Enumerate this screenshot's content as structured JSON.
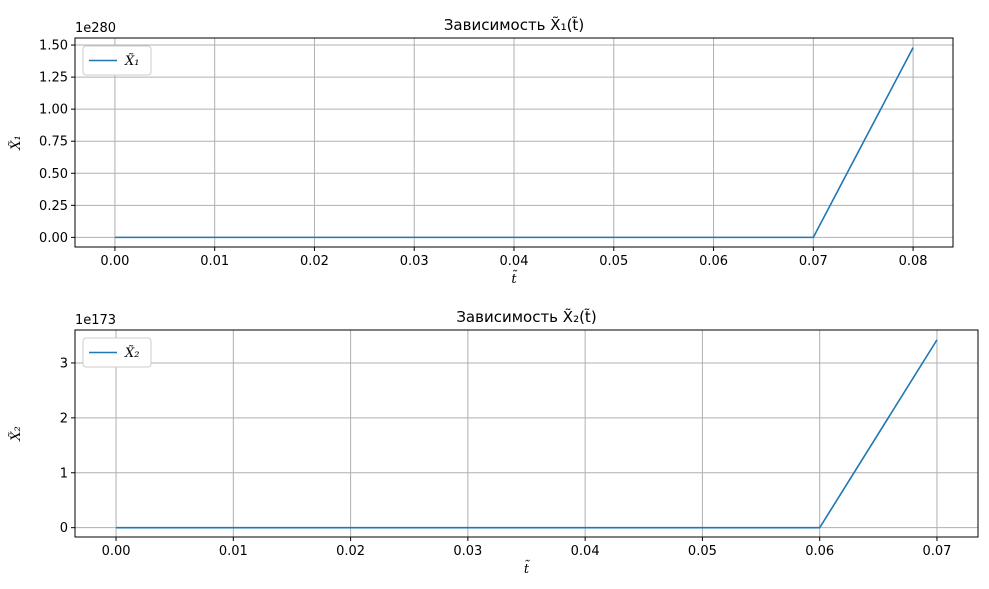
{
  "chart_data": [
    {
      "type": "line",
      "title": "Зависимость X̃₁(t̃)",
      "xlabel": "t̃",
      "ylabel": "X̃₁",
      "offset_text": "1e280",
      "xlim": [
        -0.004,
        0.084
      ],
      "ylim": [
        -0.075,
        1.555
      ],
      "grid": true,
      "legend_position": "upper-left",
      "xticks": [
        0.0,
        0.01,
        0.02,
        0.03,
        0.04,
        0.05,
        0.06,
        0.07,
        0.08
      ],
      "xtick_labels": [
        "0.00",
        "0.01",
        "0.02",
        "0.03",
        "0.04",
        "0.05",
        "0.06",
        "0.07",
        "0.08"
      ],
      "yticks": [
        0.0,
        0.25,
        0.5,
        0.75,
        1.0,
        1.25,
        1.5
      ],
      "ytick_labels": [
        "0.00",
        "0.25",
        "0.50",
        "0.75",
        "1.00",
        "1.25",
        "1.50"
      ],
      "series": [
        {
          "name": "X̃₁",
          "color": "#1f77b4",
          "x": [
            0.0,
            0.01,
            0.02,
            0.03,
            0.04,
            0.05,
            0.06,
            0.07,
            0.08
          ],
          "y": [
            0,
            0,
            0,
            0,
            0,
            0,
            0,
            0,
            1.48
          ]
        }
      ]
    },
    {
      "type": "line",
      "title": "Зависимость X̃₂(t̃)",
      "xlabel": "t̃",
      "ylabel": "X̃₂",
      "offset_text": "1e173",
      "xlim": [
        -0.0035,
        0.0735
      ],
      "ylim": [
        -0.17,
        3.6
      ],
      "grid": true,
      "legend_position": "upper-left",
      "xticks": [
        0.0,
        0.01,
        0.02,
        0.03,
        0.04,
        0.05,
        0.06,
        0.07
      ],
      "xtick_labels": [
        "0.00",
        "0.01",
        "0.02",
        "0.03",
        "0.04",
        "0.05",
        "0.06",
        "0.07"
      ],
      "yticks": [
        0,
        1,
        2,
        3
      ],
      "ytick_labels": [
        "0",
        "1",
        "2",
        "3"
      ],
      "series": [
        {
          "name": "X̃₂",
          "color": "#1f77b4",
          "x": [
            0.0,
            0.01,
            0.02,
            0.03,
            0.04,
            0.05,
            0.06,
            0.07
          ],
          "y": [
            0,
            0,
            0,
            0,
            0,
            0,
            0,
            3.42
          ]
        }
      ]
    }
  ]
}
